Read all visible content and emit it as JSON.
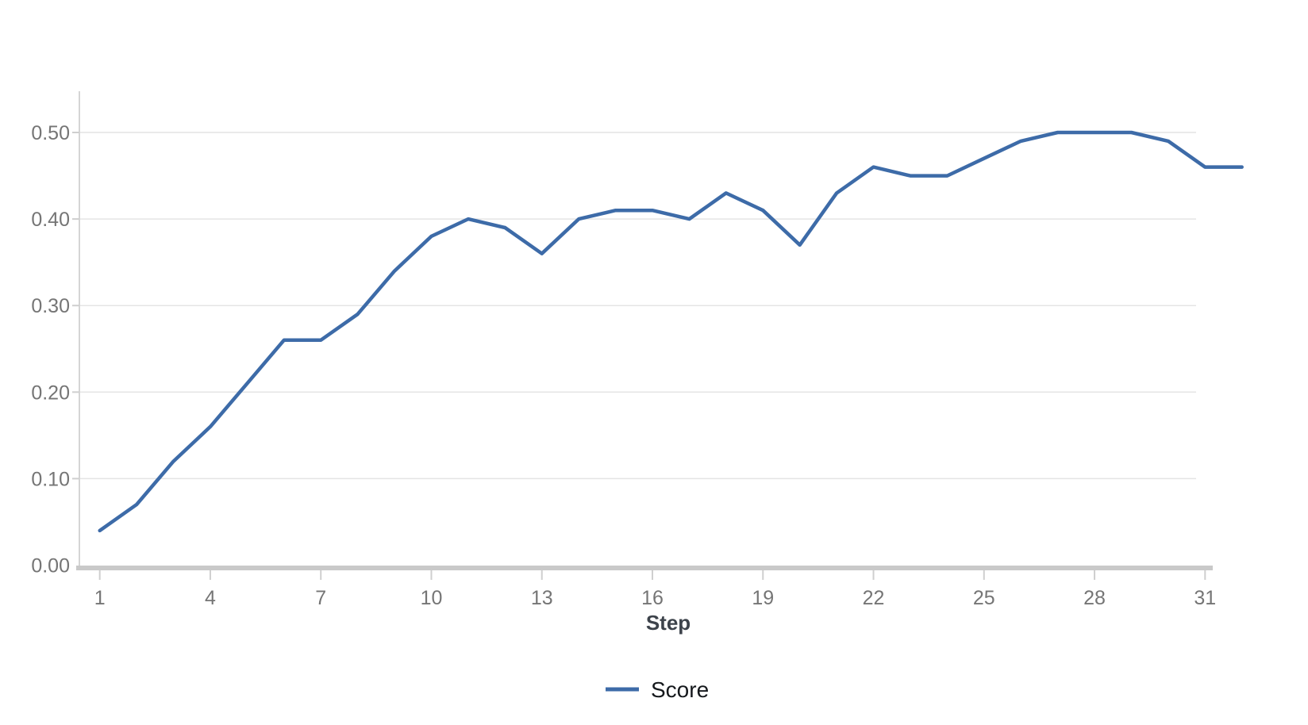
{
  "chart_data": {
    "type": "line",
    "title": "",
    "xlabel": "Step",
    "ylabel": "",
    "x_tick_labels": [
      "1",
      "4",
      "7",
      "10",
      "13",
      "16",
      "19",
      "22",
      "25",
      "28",
      "31"
    ],
    "y_tick_labels": [
      "0.00",
      "0.10",
      "0.20",
      "0.30",
      "0.40",
      "0.50"
    ],
    "ylim": [
      0,
      0.55
    ],
    "xlim": [
      1,
      32
    ],
    "grid": "horizontal",
    "legend_position": "bottom-center",
    "series": [
      {
        "name": "Score",
        "color": "#3d6ba8",
        "x": [
          1,
          2,
          3,
          4,
          5,
          6,
          7,
          8,
          9,
          10,
          11,
          12,
          13,
          14,
          15,
          16,
          17,
          18,
          19,
          20,
          21,
          22,
          23,
          24,
          25,
          26,
          27,
          28,
          29,
          30,
          31,
          32
        ],
        "values": [
          0.04,
          0.07,
          0.12,
          0.16,
          0.21,
          0.26,
          0.26,
          0.29,
          0.34,
          0.38,
          0.4,
          0.39,
          0.36,
          0.4,
          0.41,
          0.41,
          0.4,
          0.43,
          0.41,
          0.37,
          0.43,
          0.46,
          0.45,
          0.45,
          0.47,
          0.49,
          0.5,
          0.5,
          0.5,
          0.49,
          0.46,
          0.46
        ]
      }
    ]
  }
}
